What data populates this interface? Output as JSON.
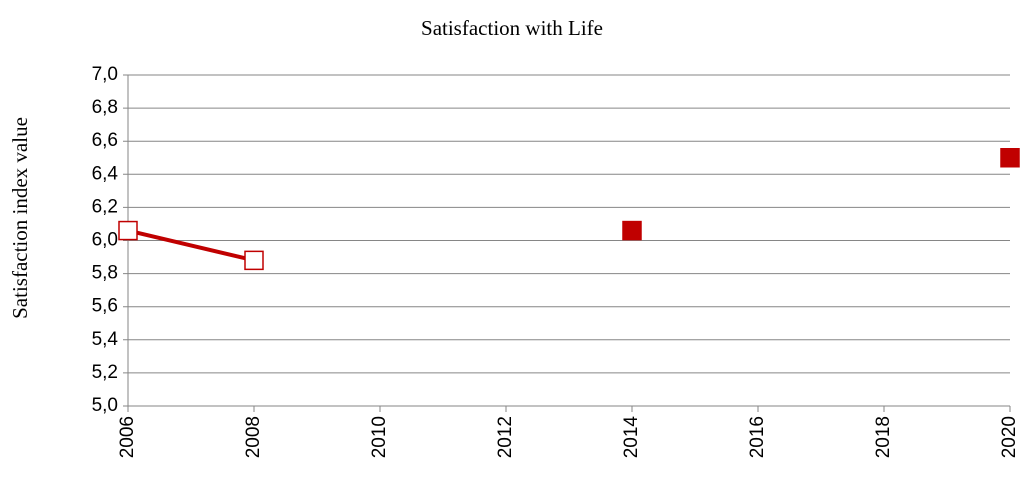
{
  "chart_data": {
    "type": "line",
    "title": "Satisfaction with Life",
    "y_label": "Satisfaction index value",
    "series": [
      {
        "color": "#c00000",
        "filled": false,
        "line": true,
        "x": [
          2006,
          2008
        ],
        "values": [
          6.06,
          5.88
        ]
      },
      {
        "color": "#c00000",
        "filled": true,
        "line": false,
        "x": [
          2014,
          2020
        ],
        "values": [
          6.06,
          6.5
        ]
      }
    ],
    "xlim": [
      2006,
      2020
    ],
    "xticks": [
      2006,
      2008,
      2010,
      2012,
      2014,
      2016,
      2018,
      2020
    ],
    "ylim": [
      5.0,
      7.0
    ],
    "yticks": [
      {
        "value": 5.0,
        "label": "5,0"
      },
      {
        "value": 5.2,
        "label": "5,2"
      },
      {
        "value": 5.4,
        "label": "5,4"
      },
      {
        "value": 5.6,
        "label": "5,6"
      },
      {
        "value": 5.8,
        "label": "5,8"
      },
      {
        "value": 6.0,
        "label": "6,0"
      },
      {
        "value": 6.2,
        "label": "6,2"
      },
      {
        "value": 6.4,
        "label": "6,4"
      },
      {
        "value": 6.6,
        "label": "6,6"
      },
      {
        "value": 6.8,
        "label": "6,8"
      },
      {
        "value": 7.0,
        "label": "7,0"
      }
    ],
    "grid": true
  }
}
